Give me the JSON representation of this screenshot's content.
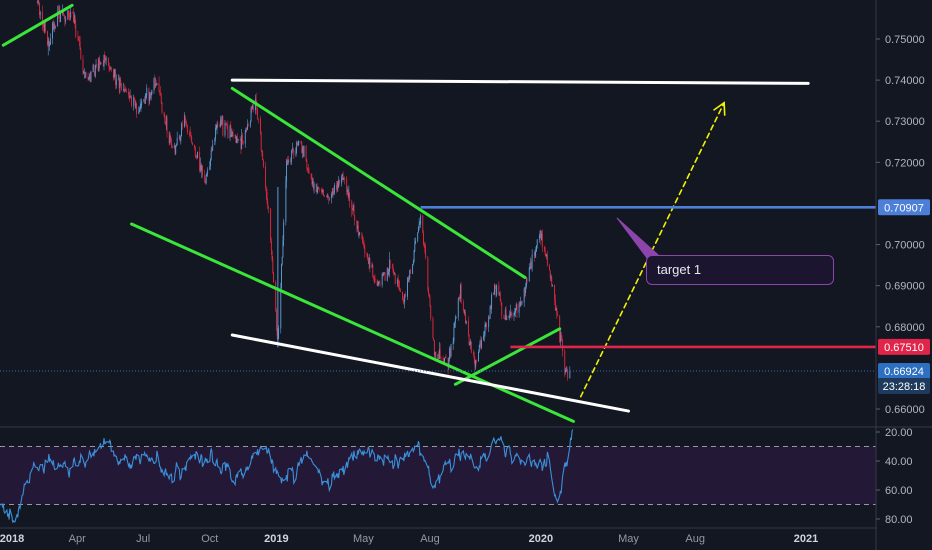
{
  "chart_data": [
    {
      "type": "candlestick",
      "title": "",
      "x_ticks": [
        "2018",
        "Apr",
        "Jul",
        "Oct",
        "2019",
        "May",
        "Aug",
        "2020",
        "May",
        "Aug",
        "2021"
      ],
      "y_ticks": [
        0.75,
        0.74,
        0.73,
        0.72,
        0.71,
        0.7,
        0.69,
        0.68,
        0.67,
        0.66
      ],
      "y_tick_labels": [
        "0.75000",
        "0.74000",
        "0.73000",
        "0.72000",
        "0.70000",
        "0.69000",
        "0.68000",
        "0.66000"
      ],
      "ylim": [
        0.657,
        0.7592
      ],
      "x_range": [
        "2018-01-01",
        "2021-03-15"
      ],
      "grid": false,
      "price_key_points": [
        [
          "2018-02-05",
          0.7592
        ],
        [
          "2018-02-20",
          0.748
        ],
        [
          "2018-03-05",
          0.756
        ],
        [
          "2018-03-28",
          0.755
        ],
        [
          "2018-04-12",
          0.74
        ],
        [
          "2018-05-10",
          0.745
        ],
        [
          "2018-06-01",
          0.738
        ],
        [
          "2018-06-25",
          0.733
        ],
        [
          "2018-07-20",
          0.74
        ],
        [
          "2018-08-10",
          0.722
        ],
        [
          "2018-08-27",
          0.73
        ],
        [
          "2018-09-25",
          0.715
        ],
        [
          "2018-10-12",
          0.73
        ],
        [
          "2018-10-26",
          0.728
        ],
        [
          "2018-11-16",
          0.725
        ],
        [
          "2018-12-03",
          0.736
        ],
        [
          "2018-12-20",
          0.71
        ],
        [
          "2019-01-03",
          0.676
        ],
        [
          "2019-01-15",
          0.719
        ],
        [
          "2019-02-01",
          0.726
        ],
        [
          "2019-02-20",
          0.715
        ],
        [
          "2019-03-15",
          0.711
        ],
        [
          "2019-04-05",
          0.717
        ],
        [
          "2019-04-22",
          0.704
        ],
        [
          "2019-05-20",
          0.69
        ],
        [
          "2019-06-10",
          0.695
        ],
        [
          "2019-06-25",
          0.686
        ],
        [
          "2019-07-10",
          0.698
        ],
        [
          "2019-07-19",
          0.708
        ],
        [
          "2019-08-07",
          0.674
        ],
        [
          "2019-08-26",
          0.671
        ],
        [
          "2019-09-12",
          0.688
        ],
        [
          "2019-10-02",
          0.67
        ],
        [
          "2019-10-31",
          0.69
        ],
        [
          "2019-11-15",
          0.682
        ],
        [
          "2019-12-04",
          0.685
        ],
        [
          "2019-12-30",
          0.703
        ],
        [
          "2020-01-15",
          0.692
        ],
        [
          "2020-02-05",
          0.669
        ],
        [
          "2020-02-10",
          0.6692
        ]
      ],
      "annotations": {
        "trend_lines": [
          {
            "color": "#39e639",
            "from": [
              "2017-12-20",
              0.7485
            ],
            "to": [
              "2018-03-25",
              0.7582
            ]
          },
          {
            "color": "#39e639",
            "from": [
              "2018-11-01",
              0.738
            ],
            "to": [
              "2019-12-10",
              0.692
            ]
          },
          {
            "color": "#39e639",
            "from": [
              "2018-06-15",
              0.705
            ],
            "to": [
              "2020-02-15",
              0.657
            ]
          },
          {
            "color": "#39e639",
            "from": [
              "2019-09-05",
              0.666
            ],
            "to": [
              "2020-01-27",
              0.6795
            ]
          },
          {
            "color": "#ffffff",
            "from": [
              "2018-11-01",
              0.74
            ],
            "to": [
              "2021-01-04",
              0.7392
            ]
          },
          {
            "color": "#ffffff",
            "from": [
              "2018-11-01",
              0.678
            ],
            "to": [
              "2020-05-01",
              0.6595
            ]
          },
          {
            "color": "#f2f200",
            "dashed": true,
            "arrow": true,
            "from": [
              "2020-02-25",
              0.663
            ],
            "to": [
              "2020-09-10",
              0.7345
            ]
          }
        ],
        "horizontal_rays": [
          {
            "color": "#4d7fd9",
            "value": 0.70907,
            "label": "0.70907",
            "from": "2019-07-19"
          },
          {
            "color": "#e0254a",
            "value": 0.6751,
            "label": "0.67510",
            "from": "2019-11-20"
          },
          {
            "color": "#2d6fc0",
            "value": 0.66924,
            "label": "0.66924",
            "from": "2017-12-01",
            "dotted": true
          }
        ],
        "callout": {
          "text": "target 1",
          "pointer_to": [
            "2020-04-15",
            0.7065
          ]
        },
        "countdown": "23:28:18"
      }
    },
    {
      "type": "line",
      "title": "",
      "y_ticks": [
        20,
        40,
        60,
        80
      ],
      "y_tick_labels": [
        "20.00",
        "40.00",
        "60.00",
        "80.00"
      ],
      "ylim": [
        17,
        83
      ],
      "y_inverted": true,
      "reference_lines": [
        30,
        70
      ],
      "band": [
        30,
        70
      ],
      "series": [
        {
          "color": "#3a8fd8",
          "key_points": [
            [
              "2017-12-01",
              67
            ],
            [
              "2017-12-20",
              73
            ],
            [
              "2018-01-05",
              81
            ],
            [
              "2018-01-20",
              55
            ],
            [
              "2018-02-10",
              38
            ],
            [
              "2018-03-15",
              45
            ],
            [
              "2018-04-15",
              40
            ],
            [
              "2018-05-10",
              28
            ],
            [
              "2018-06-15",
              42
            ],
            [
              "2018-07-15",
              37
            ],
            [
              "2018-08-10",
              55
            ],
            [
              "2018-09-10",
              33
            ],
            [
              "2018-10-15",
              46
            ],
            [
              "2018-11-15",
              55
            ],
            [
              "2018-12-10",
              28
            ],
            [
              "2019-01-10",
              56
            ],
            [
              "2019-02-10",
              40
            ],
            [
              "2019-03-15",
              57
            ],
            [
              "2019-04-15",
              33
            ],
            [
              "2019-05-15",
              34
            ],
            [
              "2019-06-15",
              42
            ],
            [
              "2019-07-15",
              27
            ],
            [
              "2019-08-05",
              56
            ],
            [
              "2019-09-10",
              37
            ],
            [
              "2019-10-05",
              45
            ],
            [
              "2019-10-25",
              30
            ],
            [
              "2019-11-20",
              34
            ],
            [
              "2019-12-15",
              42
            ],
            [
              "2020-01-10",
              38
            ],
            [
              "2020-01-25",
              72
            ],
            [
              "2020-02-05",
              40
            ],
            [
              "2020-02-15",
              20
            ]
          ]
        }
      ]
    }
  ]
}
